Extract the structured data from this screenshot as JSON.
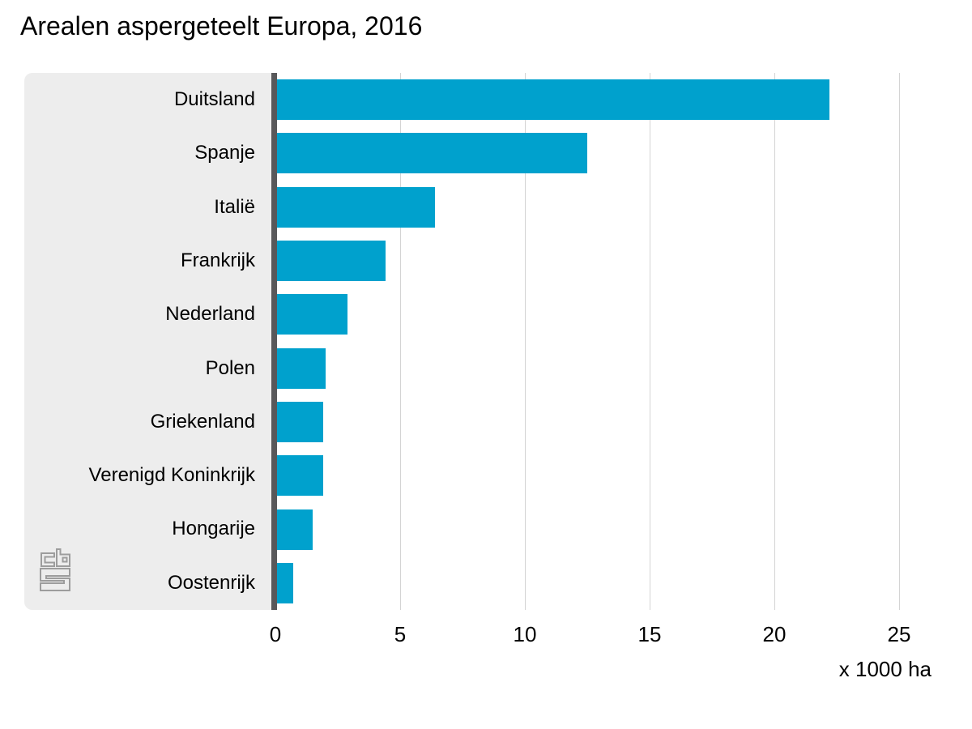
{
  "chart_data": {
    "type": "bar",
    "orientation": "horizontal",
    "title": "Arealen aspergeteelt Europa, 2016",
    "categories": [
      "Duitsland",
      "Spanje",
      "Italië",
      "Frankrijk",
      "Nederland",
      "Polen",
      "Griekenland",
      "Verenigd Koninkrijk",
      "Hongarije",
      "Oostenrijk"
    ],
    "values": [
      22.2,
      12.5,
      6.4,
      4.4,
      2.9,
      2.0,
      1.9,
      1.9,
      1.5,
      0.7
    ],
    "x_ticks": [
      0,
      5,
      10,
      15,
      20,
      25
    ],
    "xlim": [
      0,
      25
    ],
    "unit_label": "x 1000 ha",
    "grid": true,
    "legend": "none",
    "source_logo": "cbs"
  },
  "colors": {
    "bar": "#00a1cd",
    "panel": "#ededed",
    "axis_line": "#58585a",
    "gridline": "#d4d4d4",
    "text": "#000000",
    "logo": "#9d9d9d"
  }
}
